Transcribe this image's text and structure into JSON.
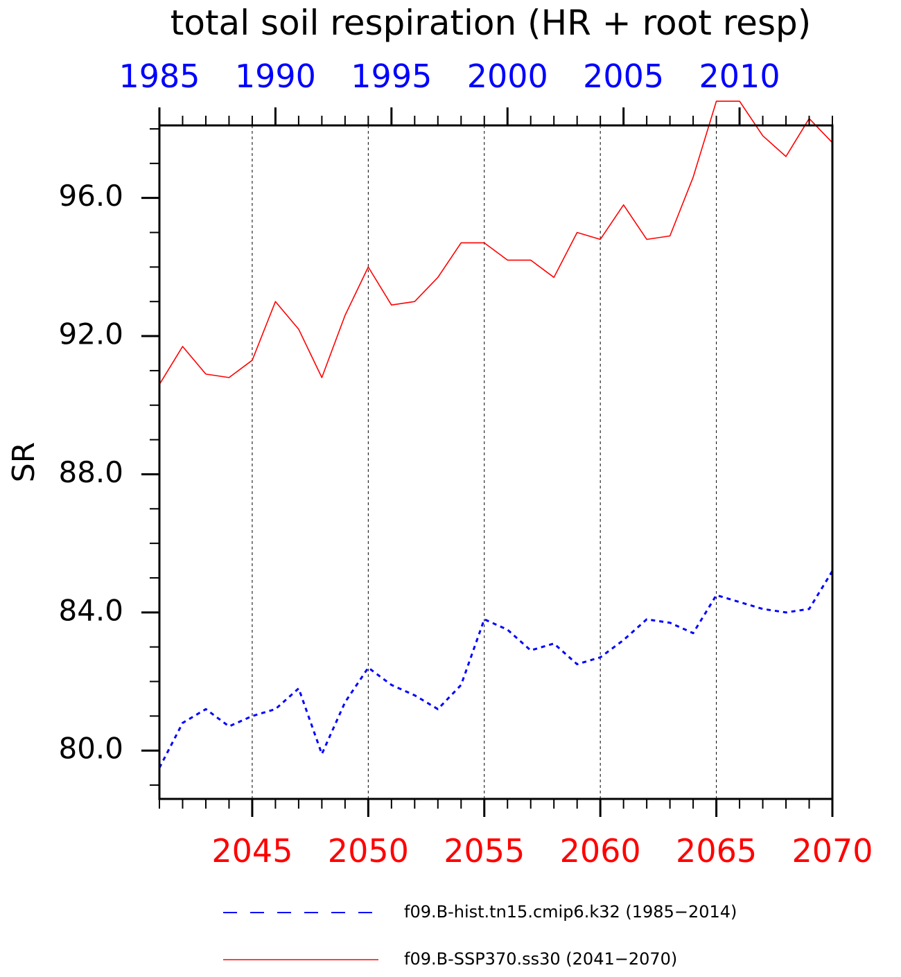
{
  "chart_data": {
    "type": "line",
    "title": "total soil respiration (HR + root resp)",
    "ylabel": "SR",
    "xlabel": "",
    "ylim": [
      78.6,
      98.1
    ],
    "yticks": [
      80,
      84,
      88,
      92,
      96
    ],
    "ytick_labels": [
      "80.0",
      "84.0",
      "88.0",
      "92.0",
      "96.0"
    ],
    "y_minor_step": 1,
    "grid": "vertical-dashed",
    "legend_position": "bottom",
    "colors": {
      "solid": "#ff0000",
      "dashed": "#0000ff",
      "axis": "#000000",
      "grid": "#000000"
    },
    "x_bottom": {
      "range": [
        2041,
        2070
      ],
      "ticks": [
        2045,
        2050,
        2055,
        2060,
        2065,
        2070
      ],
      "labels": [
        "2045",
        "2050",
        "2055",
        "2060",
        "2065",
        "2070"
      ],
      "color": "#ff0000"
    },
    "x_top": {
      "range": [
        1985,
        2014
      ],
      "ticks": [
        1985,
        1990,
        1995,
        2000,
        2005,
        2010
      ],
      "labels": [
        "1985",
        "1990",
        "1995",
        "2000",
        "2005",
        "2010"
      ],
      "color": "#0000ff"
    },
    "series": [
      {
        "name": "f09.B-hist.tn15.cmip6.k32 (1985−2014)",
        "axis": "x_top",
        "style": "dashed",
        "color": "#0000ff",
        "x": [
          1985,
          1986,
          1987,
          1988,
          1989,
          1990,
          1991,
          1992,
          1993,
          1994,
          1995,
          1996,
          1997,
          1998,
          1999,
          2000,
          2001,
          2002,
          2003,
          2004,
          2005,
          2006,
          2007,
          2008,
          2009,
          2010,
          2011,
          2012,
          2013,
          2014
        ],
        "values": [
          79.5,
          80.8,
          81.2,
          80.7,
          81.0,
          81.2,
          81.8,
          79.9,
          81.4,
          82.4,
          81.9,
          81.6,
          81.2,
          81.9,
          83.8,
          83.5,
          82.9,
          83.1,
          82.5,
          82.7,
          83.2,
          83.8,
          83.7,
          83.4,
          84.5,
          84.3,
          84.1,
          84.0,
          84.1,
          85.2
        ]
      },
      {
        "name": "f09.B-SSP370.ss30 (2041−2070)",
        "axis": "x_bottom",
        "style": "solid",
        "color": "#ff0000",
        "x": [
          2041,
          2042,
          2043,
          2044,
          2045,
          2046,
          2047,
          2048,
          2049,
          2050,
          2051,
          2052,
          2053,
          2054,
          2055,
          2056,
          2057,
          2058,
          2059,
          2060,
          2061,
          2062,
          2063,
          2064,
          2065,
          2066,
          2067,
          2068,
          2069,
          2070
        ],
        "values": [
          90.6,
          91.7,
          90.9,
          90.8,
          91.3,
          93.0,
          92.2,
          90.8,
          92.6,
          94.0,
          92.9,
          93.0,
          93.7,
          94.7,
          94.7,
          94.2,
          94.2,
          93.7,
          95.0,
          94.8,
          95.8,
          94.8,
          94.9,
          96.6,
          98.8,
          98.8,
          97.8,
          97.2,
          98.3,
          97.6
        ]
      }
    ]
  }
}
